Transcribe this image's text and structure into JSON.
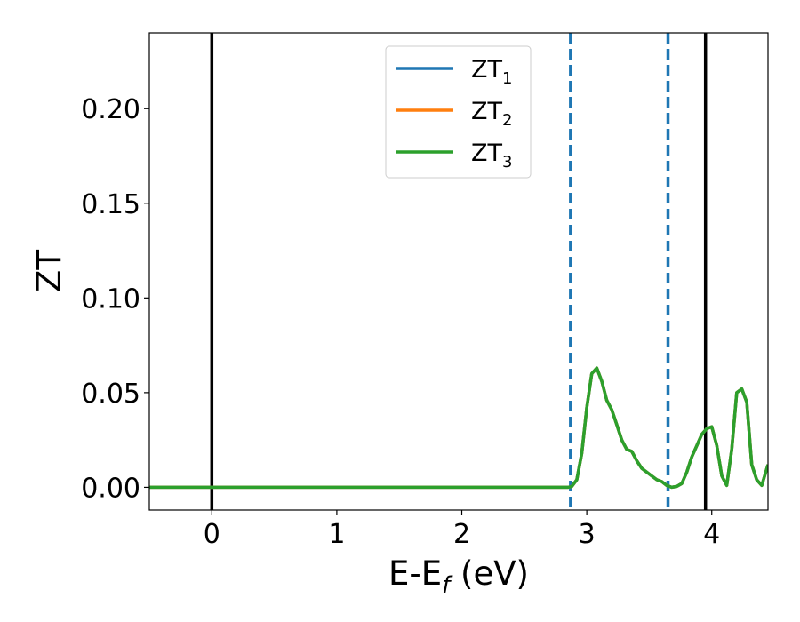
{
  "chart_data": {
    "type": "line",
    "title": "",
    "xlabel": {
      "main": "E-E",
      "subscript": "f",
      "suffix": " (eV)"
    },
    "ylabel": "ZT",
    "xlim": [
      -0.5,
      4.45
    ],
    "ylim": [
      -0.012,
      0.24
    ],
    "xticks": [
      0,
      1,
      2,
      3,
      4
    ],
    "xtick_labels": [
      "0",
      "1",
      "2",
      "3",
      "4"
    ],
    "yticks": [
      0.0,
      0.05,
      0.1,
      0.15,
      0.2
    ],
    "ytick_labels": [
      "0.00",
      "0.05",
      "0.10",
      "0.15",
      "0.20"
    ],
    "grid": false,
    "legend_position": "top-center",
    "vlines": [
      {
        "x": 0.0,
        "style": "solid",
        "color": "#000000"
      },
      {
        "x": 3.95,
        "style": "solid",
        "color": "#000000"
      },
      {
        "x": 2.87,
        "style": "dashed",
        "color": "#1f77b4"
      },
      {
        "x": 3.65,
        "style": "dashed",
        "color": "#1f77b4"
      }
    ],
    "x": [
      -0.5,
      0.0,
      0.5,
      1.0,
      1.5,
      2.0,
      2.5,
      2.75,
      2.85,
      2.88,
      2.92,
      2.96,
      3.0,
      3.04,
      3.08,
      3.12,
      3.16,
      3.2,
      3.24,
      3.28,
      3.32,
      3.36,
      3.4,
      3.44,
      3.48,
      3.52,
      3.56,
      3.6,
      3.64,
      3.68,
      3.72,
      3.76,
      3.8,
      3.84,
      3.88,
      3.92,
      3.96,
      4.0,
      4.04,
      4.08,
      4.12,
      4.16,
      4.2,
      4.24,
      4.28,
      4.32,
      4.36,
      4.4,
      4.45
    ],
    "series": [
      {
        "name": {
          "main": "ZT",
          "subscript": "1"
        },
        "color": "#1f77b4",
        "values": [
          0,
          0,
          0,
          0,
          0,
          0,
          0,
          0,
          0,
          0.0005,
          0.004,
          0.018,
          0.042,
          0.06,
          0.063,
          0.056,
          0.046,
          0.041,
          0.033,
          0.025,
          0.02,
          0.019,
          0.014,
          0.01,
          0.008,
          0.006,
          0.004,
          0.003,
          0.001,
          0,
          0.0005,
          0.002,
          0.008,
          0.016,
          0.022,
          0.028,
          0.031,
          0.032,
          0.022,
          0.006,
          0.001,
          0.02,
          0.05,
          0.052,
          0.045,
          0.012,
          0.004,
          0.001,
          0.012
        ]
      },
      {
        "name": {
          "main": "ZT",
          "subscript": "2"
        },
        "color": "#ff7f0e",
        "values": [
          0,
          0,
          0,
          0,
          0,
          0,
          0,
          0,
          0,
          0.0005,
          0.004,
          0.018,
          0.042,
          0.06,
          0.063,
          0.056,
          0.046,
          0.041,
          0.033,
          0.025,
          0.02,
          0.019,
          0.014,
          0.01,
          0.008,
          0.006,
          0.004,
          0.003,
          0.001,
          0,
          0.0005,
          0.002,
          0.008,
          0.016,
          0.022,
          0.028,
          0.031,
          0.032,
          0.022,
          0.006,
          0.001,
          0.02,
          0.05,
          0.052,
          0.045,
          0.012,
          0.004,
          0.001,
          0.012
        ]
      },
      {
        "name": {
          "main": "ZT",
          "subscript": "3"
        },
        "color": "#2ca02c",
        "values": [
          0,
          0,
          0,
          0,
          0,
          0,
          0,
          0,
          0,
          0.0005,
          0.004,
          0.018,
          0.042,
          0.06,
          0.063,
          0.056,
          0.046,
          0.041,
          0.033,
          0.025,
          0.02,
          0.019,
          0.014,
          0.01,
          0.008,
          0.006,
          0.004,
          0.003,
          0.001,
          0,
          0.0005,
          0.002,
          0.008,
          0.016,
          0.022,
          0.028,
          0.031,
          0.032,
          0.022,
          0.006,
          0.001,
          0.02,
          0.05,
          0.052,
          0.045,
          0.012,
          0.004,
          0.001,
          0.012
        ]
      }
    ]
  }
}
